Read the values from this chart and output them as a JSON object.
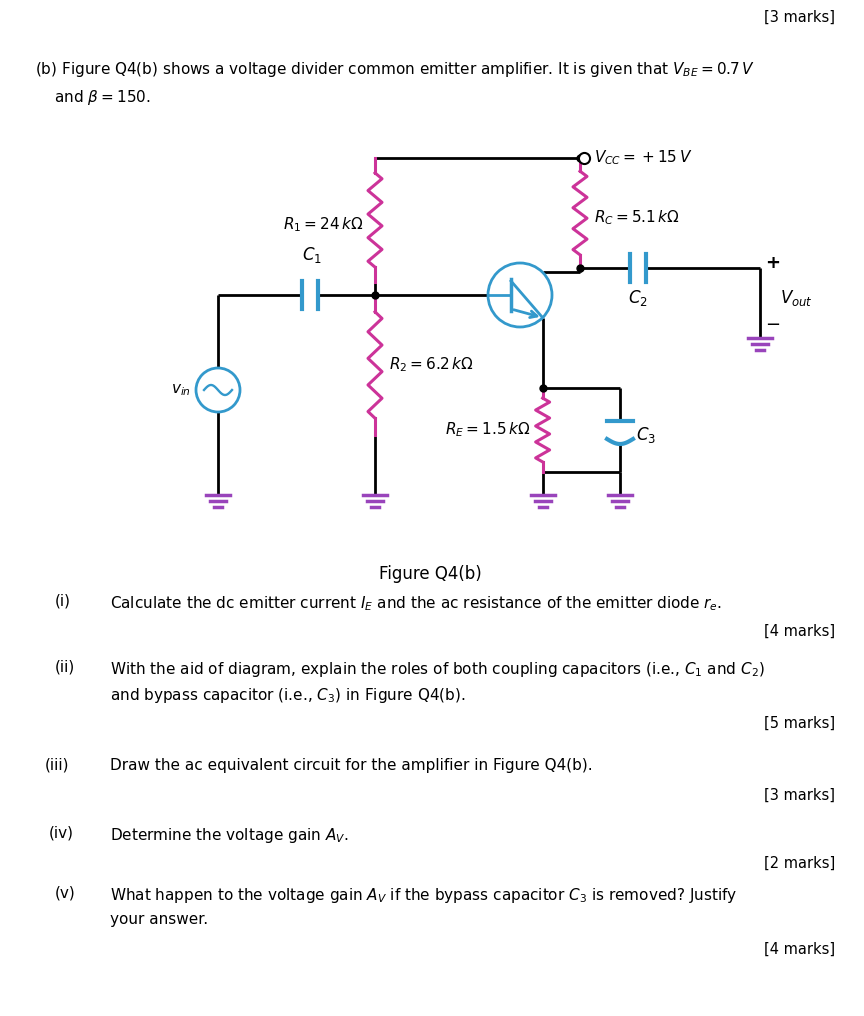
{
  "fig_label": "Figure Q4(b)",
  "vcc_label": "$V_{CC} = +15\\,V$",
  "r1_label": "$R_1 = 24\\,k\\Omega$",
  "r2_label": "$R_2 = 6.2\\,k\\Omega$",
  "rc_label": "$R_C = 5.1\\,k\\Omega$",
  "re_label": "$R_E = 1.5\\,k\\Omega$",
  "c1_label": "$C_1$",
  "c2_label": "$C_2$",
  "c3_label": "$C_3$",
  "vin_label": "$v_{in}$",
  "vout_label": "$V_{out}$",
  "intro_line1": "(b) Figure Q4(b) shows a voltage divider common emitter amplifier. It is given that $V_{BE} = 0.7\\,V$",
  "intro_line2": "    and $\\beta = 150$.",
  "marks_top": "[3 marks]",
  "q1_label": "(i)",
  "q1_text": "Calculate the dc emitter current $I_E$ and the ac resistance of the emitter diode $r_e$.",
  "q1_marks": "[4 marks]",
  "q2_label": "(ii)",
  "q2_text": "With the aid of diagram, explain the roles of both coupling capacitors (i.e., $C_1$ and $C_2$)",
  "q2_text2": "and bypass capacitor (i.e., $C_3$) in Figure Q4(b).",
  "q2_marks": "[5 marks]",
  "q3_label": "(iii)",
  "q3_text": "Draw the ac equivalent circuit for the amplifier in Figure Q4(b).",
  "q3_marks": "[3 marks]",
  "q4_label": "(iv)",
  "q4_text": "Determine the voltage gain $A_V$.",
  "q4_marks": "[2 marks]",
  "q5_label": "(v)",
  "q5_text": "What happen to the voltage gain $A_V$ if the bypass capacitor $C_3$ is removed? Justify",
  "q5_text2": "your answer.",
  "q5_marks": "[4 marks]",
  "bg_color": "#ffffff",
  "resistor_color": "#cc3399",
  "wire_color": "#000000",
  "capacitor_color": "#3399cc",
  "transistor_color": "#3399cc",
  "source_color": "#3399cc",
  "ground_color": "#9944bb",
  "text_color": "#000000"
}
